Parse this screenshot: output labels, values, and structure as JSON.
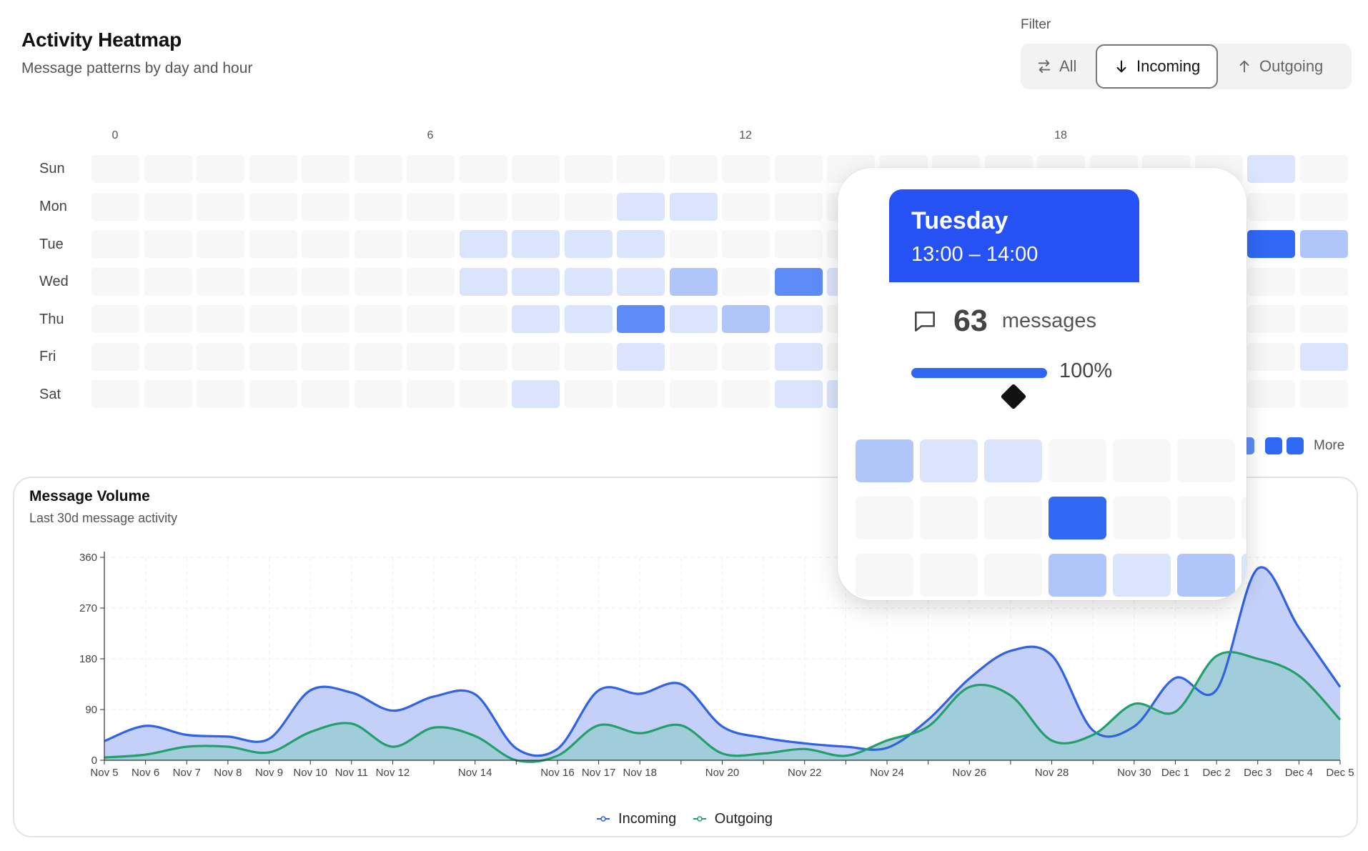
{
  "header": {
    "title": "Activity Heatmap",
    "subtitle": "Message patterns by day and hour"
  },
  "filter": {
    "label": "Filter",
    "options": [
      {
        "label": "All",
        "icon": "swap-arrows-icon"
      },
      {
        "label": "Incoming",
        "icon": "arrow-down-icon"
      },
      {
        "label": "Outgoing",
        "icon": "arrow-up-icon"
      }
    ],
    "selected": "Incoming"
  },
  "heatmap": {
    "hour_labels": [
      "0",
      "6",
      "12",
      "18"
    ],
    "days": [
      "Sun",
      "Mon",
      "Tue",
      "Wed",
      "Thu",
      "Fri",
      "Sat"
    ],
    "intensity_levels": [
      {
        "level": 0,
        "color": "#f7f7f8"
      },
      {
        "level": 1,
        "color": "#dbe4fd"
      },
      {
        "level": 2,
        "color": "#b0c6fb"
      },
      {
        "level": 3,
        "color": "#5d8cf7"
      },
      {
        "level": 4,
        "color": "#3168f4"
      }
    ],
    "cells": [
      [
        0,
        0,
        0,
        0,
        0,
        0,
        0,
        0,
        0,
        0,
        0,
        0,
        0,
        0,
        0,
        0,
        0,
        0,
        0,
        0,
        0,
        0,
        1,
        0
      ],
      [
        0,
        0,
        0,
        0,
        0,
        0,
        0,
        0,
        0,
        0,
        1,
        1,
        0,
        0,
        0,
        0,
        0,
        0,
        0,
        0,
        0,
        0,
        0,
        0
      ],
      [
        0,
        0,
        0,
        0,
        0,
        0,
        0,
        1,
        1,
        1,
        1,
        0,
        0,
        0,
        0,
        0,
        0,
        0,
        0,
        0,
        0,
        0,
        4,
        2
      ],
      [
        0,
        0,
        0,
        0,
        0,
        0,
        0,
        1,
        1,
        1,
        1,
        2,
        0,
        3,
        1,
        0,
        0,
        0,
        0,
        0,
        0,
        0,
        0,
        0
      ],
      [
        0,
        0,
        0,
        0,
        0,
        0,
        0,
        0,
        1,
        1,
        3,
        1,
        2,
        1,
        0,
        0,
        0,
        0,
        0,
        0,
        0,
        0,
        0,
        0
      ],
      [
        0,
        0,
        0,
        0,
        0,
        0,
        0,
        0,
        0,
        0,
        1,
        0,
        0,
        1,
        0,
        0,
        0,
        0,
        0,
        0,
        0,
        0,
        0,
        1
      ],
      [
        0,
        0,
        0,
        0,
        0,
        0,
        0,
        0,
        1,
        0,
        0,
        0,
        0,
        1,
        1,
        0,
        0,
        0,
        0,
        0,
        0,
        0,
        0,
        0
      ]
    ],
    "legend_end_label": "More"
  },
  "tooltip": {
    "day": "Tuesday",
    "time_range": "13:00 – 14:00",
    "count": "63",
    "unit": "messages",
    "percent_label": "100%",
    "percent_value": 1.0,
    "icon": "message-bubble-icon",
    "magnified_cells": [
      [
        2,
        1,
        1,
        0,
        0,
        0
      ],
      [
        0,
        0,
        0,
        4,
        0,
        0,
        0,
        1
      ],
      [
        0,
        0,
        0,
        2,
        1,
        2,
        1
      ],
      [
        0,
        0,
        1,
        0,
        0,
        0,
        0,
        0
      ]
    ]
  },
  "volume": {
    "title": "Message Volume",
    "subtitle": "Last 30d message activity"
  },
  "chart_data": {
    "type": "area",
    "title": "Message Volume",
    "subtitle": "Last 30d message activity",
    "ylim": [
      0,
      360
    ],
    "yticks": [
      0,
      90,
      180,
      270,
      360
    ],
    "x": [
      "Nov 5",
      "Nov 6",
      "Nov 7",
      "Nov 8",
      "Nov 9",
      "Nov 10",
      "Nov 11",
      "Nov 12",
      "Nov 13",
      "Nov 14",
      "Nov 15",
      "Nov 16",
      "Nov 17",
      "Nov 18",
      "Nov 19",
      "Nov 20",
      "Nov 21",
      "Nov 22",
      "Nov 23",
      "Nov 24",
      "Nov 25",
      "Nov 26",
      "Nov 27",
      "Nov 28",
      "Nov 29",
      "Nov 30",
      "Dec 1",
      "Dec 2",
      "Dec 3",
      "Dec 4",
      "Dec 5"
    ],
    "x_tick_labels": [
      "Nov 5",
      "Nov 6",
      "Nov 7",
      "Nov 8",
      "Nov 9",
      "Nov 10",
      "Nov 11",
      "Nov 12",
      "",
      "Nov 14",
      "",
      "Nov 16",
      "Nov 17",
      "Nov 18",
      "",
      "Nov 20",
      "",
      "Nov 22",
      "",
      "Nov 24",
      "",
      "Nov 26",
      "",
      "Nov 28",
      "",
      "Nov 30",
      "Dec 1",
      "Dec 2",
      "Dec 3",
      "Dec 4",
      "Dec 5"
    ],
    "series": [
      {
        "name": "Incoming",
        "color": "#2f63e2",
        "fill": "#c2cef8",
        "values": [
          34,
          61,
          45,
          42,
          38,
          124,
          120,
          88,
          113,
          117,
          21,
          20,
          124,
          118,
          135,
          60,
          40,
          30,
          24,
          22,
          72,
          145,
          194,
          186,
          53,
          60,
          146,
          125,
          340,
          235,
          130
        ]
      },
      {
        "name": "Outgoing",
        "color": "#22a06b",
        "fill": "#9ccbd5",
        "values": [
          5,
          10,
          24,
          24,
          14,
          50,
          65,
          24,
          58,
          43,
          0,
          8,
          62,
          48,
          62,
          12,
          12,
          20,
          8,
          35,
          60,
          130,
          115,
          35,
          45,
          100,
          86,
          185,
          180,
          150,
          72
        ]
      }
    ],
    "grid": true,
    "legend": "bottom-center"
  }
}
